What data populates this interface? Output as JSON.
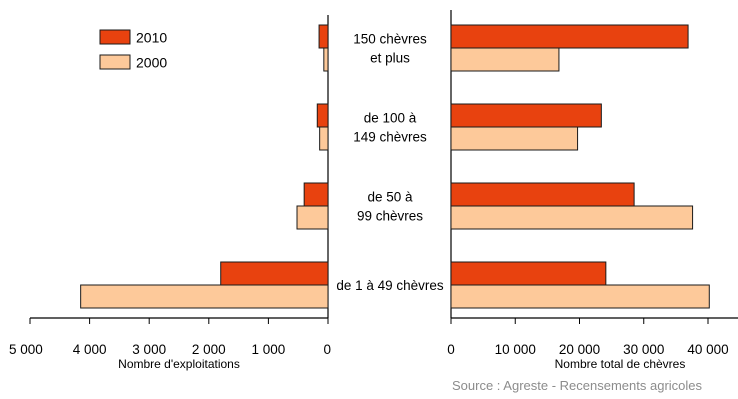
{
  "colors": {
    "2010": "#e8420f",
    "2000": "#fdc99a",
    "stroke": "#1a1a1a",
    "axis": "#000000",
    "source": "#8c8c8c"
  },
  "chart_data": [
    {
      "type": "bar",
      "orientation": "horizontal",
      "direction": "right-to-left",
      "categories": [
        "150 chèvres et plus",
        "de 100 à 149 chèvres",
        "de 50 à 99 chèvres",
        "de 1 à 49 chèvres"
      ],
      "series": [
        {
          "name": "2010",
          "values": [
            150,
            180,
            400,
            1800
          ]
        },
        {
          "name": "2000",
          "values": [
            70,
            140,
            520,
            4150
          ]
        }
      ],
      "xlabel": "Nombre d'exploitations",
      "xlim": [
        0,
        5000
      ],
      "xticks": [
        5000,
        4000,
        3000,
        2000,
        1000,
        0
      ],
      "xtick_labels": [
        "5 000",
        "4 000",
        "3 000",
        "2 000",
        "1 000",
        "0"
      ],
      "legend": {
        "placement": "top-left",
        "entries": [
          "2010",
          "2000"
        ]
      },
      "grid": false
    },
    {
      "type": "bar",
      "orientation": "horizontal",
      "direction": "left-to-right",
      "categories": [
        "150 chèvres et plus",
        "de 100 à 149 chèvres",
        "de 50 à 99 chèvres",
        "de 1 à 49 chèvres"
      ],
      "series": [
        {
          "name": "2010",
          "values": [
            36900,
            23400,
            28500,
            24100
          ]
        },
        {
          "name": "2000",
          "values": [
            16800,
            19700,
            37600,
            40200
          ]
        }
      ],
      "xlabel": "Nombre total de chèvres",
      "xlim": [
        0,
        44000
      ],
      "xticks": [
        0,
        10000,
        20000,
        30000,
        40000
      ],
      "xtick_labels": [
        "0",
        "10 000",
        "20 000",
        "30 000",
        "40 000"
      ],
      "grid": false
    }
  ],
  "category_labels": [
    [
      "150 chèvres",
      "et plus"
    ],
    [
      "de 100 à",
      "149 chèvres"
    ],
    [
      "de 50 à",
      "99 chèvres"
    ],
    [
      "de 1 à 49 chèvres"
    ]
  ],
  "source": "Source : Agreste - Recensements agricoles"
}
